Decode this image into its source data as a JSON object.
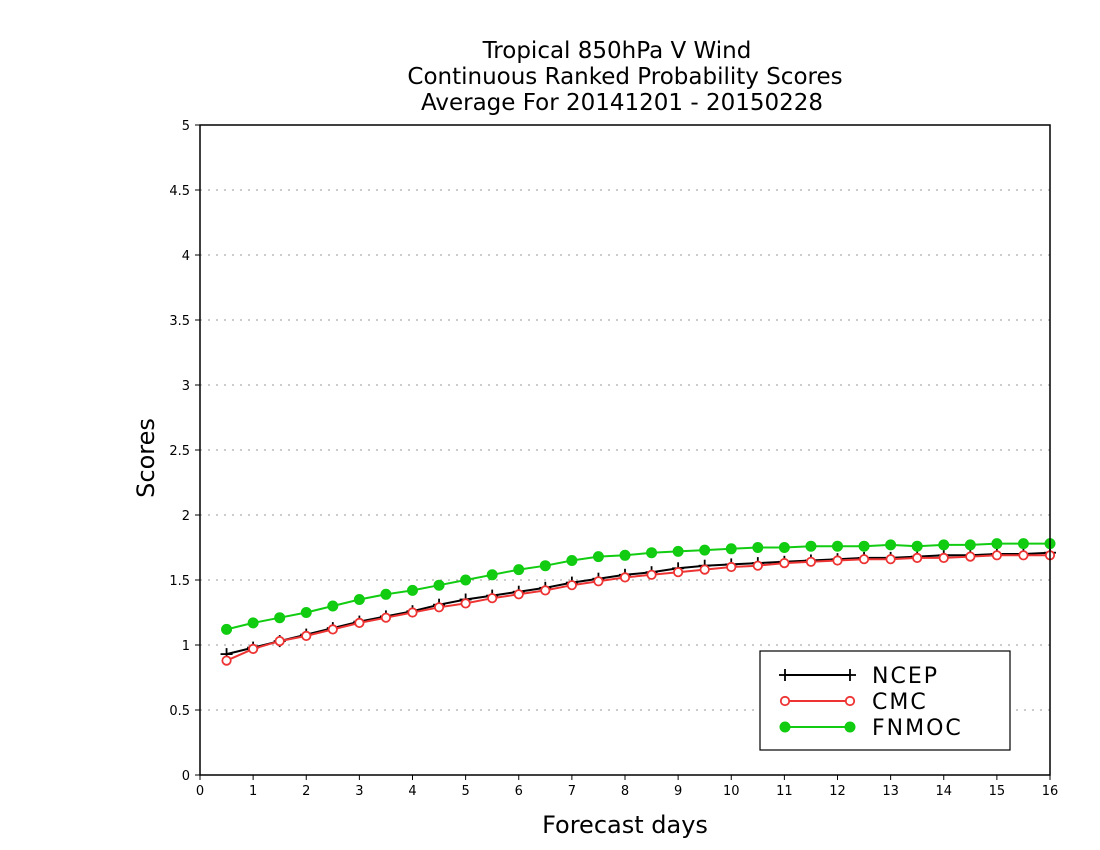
{
  "chart_data": {
    "type": "line",
    "title": [
      "Tropical 850hPa V Wind",
      "Continuous Ranked Probability Scores",
      "Average For 20141201 - 20150228"
    ],
    "xlabel": "Forecast days",
    "ylabel": "Scores",
    "xlim": [
      0,
      16
    ],
    "ylim": [
      0,
      5
    ],
    "x_ticks": [
      "0",
      "1",
      "2",
      "3",
      "4",
      "5",
      "6",
      "7",
      "8",
      "9",
      "10",
      "11",
      "12",
      "13",
      "14",
      "15",
      "16"
    ],
    "y_ticks": [
      "0",
      "0.5",
      "1",
      "1.5",
      "2",
      "2.5",
      "3",
      "3.5",
      "4",
      "4.5",
      "5"
    ],
    "grid": true,
    "legend_position": "bottom-right",
    "x": [
      0.5,
      1,
      1.5,
      2,
      2.5,
      3,
      3.5,
      4,
      4.5,
      5,
      5.5,
      6,
      6.5,
      7,
      7.5,
      8,
      8.5,
      9,
      9.5,
      10,
      10.5,
      11,
      11.5,
      12,
      12.5,
      13,
      13.5,
      14,
      14.5,
      15,
      15.5,
      16
    ],
    "series": [
      {
        "name": "NCEP",
        "color": "#000000",
        "marker": "plus",
        "values": [
          0.93,
          0.98,
          1.03,
          1.08,
          1.13,
          1.18,
          1.22,
          1.26,
          1.31,
          1.35,
          1.38,
          1.41,
          1.44,
          1.48,
          1.51,
          1.54,
          1.56,
          1.59,
          1.61,
          1.62,
          1.63,
          1.64,
          1.65,
          1.66,
          1.67,
          1.67,
          1.68,
          1.69,
          1.69,
          1.7,
          1.7,
          1.71
        ]
      },
      {
        "name": "CMC",
        "color": "#ee3333",
        "marker": "open-circle",
        "values": [
          0.88,
          0.97,
          1.03,
          1.07,
          1.12,
          1.17,
          1.21,
          1.25,
          1.29,
          1.32,
          1.36,
          1.39,
          1.42,
          1.46,
          1.49,
          1.52,
          1.54,
          1.56,
          1.58,
          1.6,
          1.61,
          1.63,
          1.64,
          1.65,
          1.66,
          1.66,
          1.67,
          1.67,
          1.68,
          1.69,
          1.69,
          1.69
        ]
      },
      {
        "name": "FNMOC",
        "color": "#11cc11",
        "marker": "filled-circle",
        "values": [
          1.12,
          1.17,
          1.21,
          1.25,
          1.3,
          1.35,
          1.39,
          1.42,
          1.46,
          1.5,
          1.54,
          1.58,
          1.61,
          1.65,
          1.68,
          1.69,
          1.71,
          1.72,
          1.73,
          1.74,
          1.75,
          1.75,
          1.76,
          1.76,
          1.76,
          1.77,
          1.76,
          1.77,
          1.77,
          1.78,
          1.78,
          1.78
        ]
      }
    ]
  }
}
